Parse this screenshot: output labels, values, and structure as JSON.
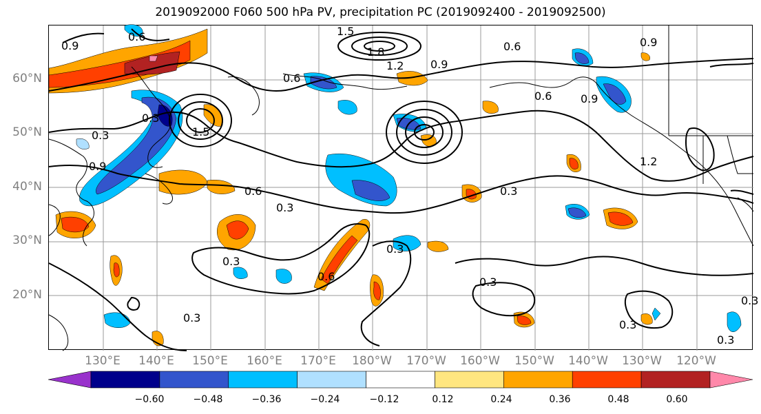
{
  "title": "2019092000 F060 500 hPa PV, precipitation PC (2019092400 - 2019092500)",
  "lat_labels": [
    "60°N",
    "50°N",
    "40°N",
    "30°N",
    "20°N"
  ],
  "lon_labels": [
    "130°E",
    "140°E",
    "150°E",
    "160°E",
    "170°E",
    "180°W",
    "170°W",
    "160°W",
    "150°W",
    "140°W",
    "130°W",
    "120°W"
  ],
  "contour_labels": [
    "0.9",
    "0.6",
    "1.5",
    "1.8",
    "1.2",
    "0.9",
    "0.6",
    "0.6",
    "0.9",
    "0.9",
    "0.6",
    "0.3",
    "1.5",
    "0.3",
    "0.9",
    "0.6",
    "0.3",
    "0.3",
    "0.6",
    "0.3",
    "0.3",
    "0.3",
    "1.2",
    "0.3",
    "0.3",
    "0.3",
    "0.3"
  ],
  "colorbar": {
    "ticks": [
      "−0.60",
      "−0.48",
      "−0.36",
      "−0.24",
      "−0.12",
      "0.12",
      "0.24",
      "0.36",
      "0.48",
      "0.60"
    ],
    "colors": [
      "#9932cc",
      "#00008b",
      "#3355cc",
      "#00bfff",
      "#b0e0ff",
      "#ffffff",
      "#ffe680",
      "#ffa500",
      "#ff4000",
      "#b22222",
      "#ff88aa"
    ]
  }
}
